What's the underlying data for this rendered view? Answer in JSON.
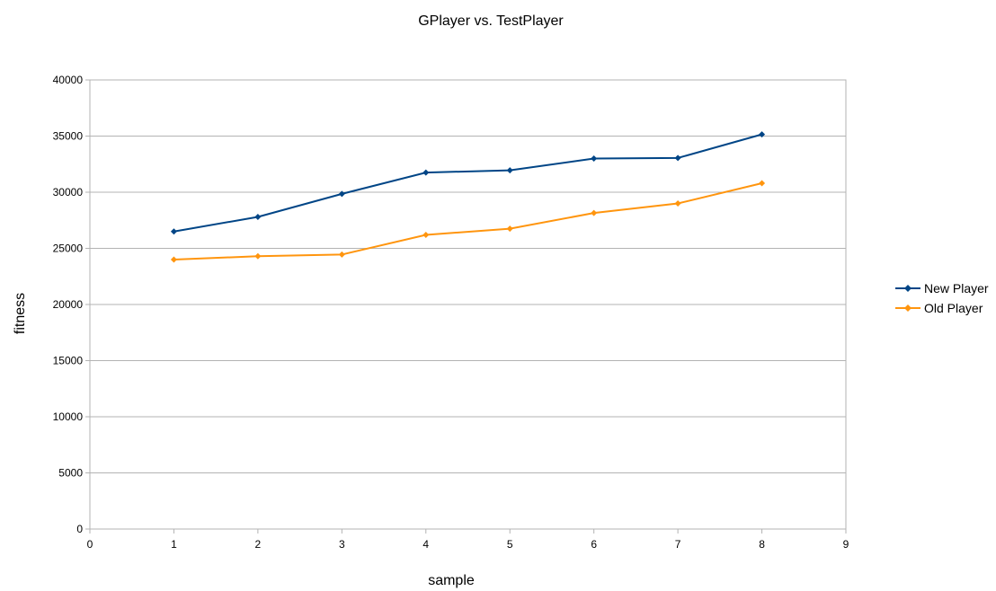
{
  "chart_data": {
    "type": "line",
    "title": "GPlayer vs. TestPlayer",
    "xlabel": "sample",
    "ylabel": "fitness",
    "xlim": [
      0,
      9
    ],
    "ylim": [
      0,
      40000
    ],
    "x_ticks": [
      0,
      1,
      2,
      3,
      4,
      5,
      6,
      7,
      8,
      9
    ],
    "y_ticks": [
      0,
      5000,
      10000,
      15000,
      20000,
      25000,
      30000,
      35000,
      40000
    ],
    "grid": "horizontal",
    "legend_position": "right",
    "x": [
      1,
      2,
      3,
      4,
      5,
      6,
      7,
      8
    ],
    "series": [
      {
        "name": "New Player",
        "color": "#004586",
        "values": [
          26500,
          27800,
          29850,
          31750,
          31950,
          33000,
          33050,
          35150
        ]
      },
      {
        "name": "Old Player",
        "color": "#ff950e",
        "values": [
          24000,
          24300,
          24450,
          26200,
          26750,
          28150,
          29000,
          30800
        ]
      }
    ]
  }
}
